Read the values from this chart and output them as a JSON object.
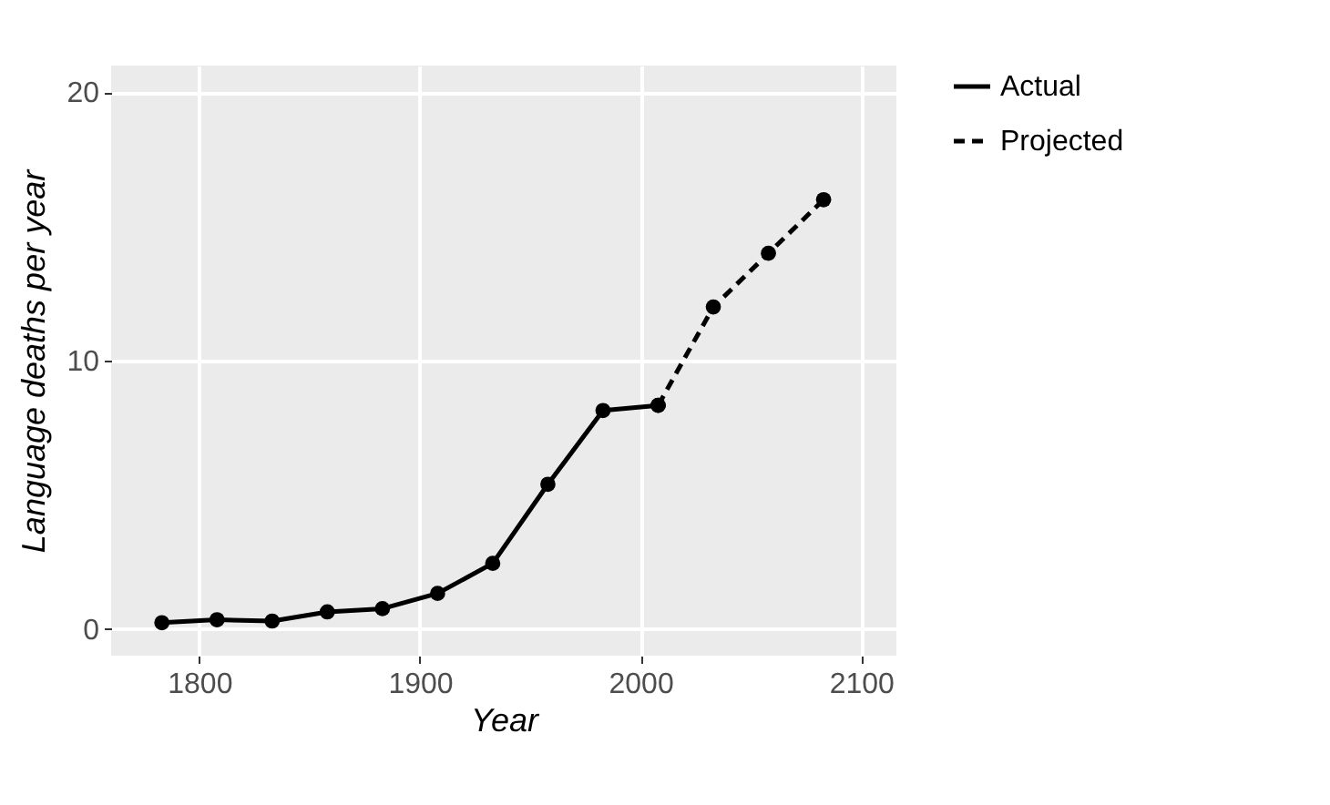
{
  "chart_data": {
    "type": "line",
    "xlabel": "Year",
    "ylabel": "Language deaths per year",
    "xlim": [
      1760,
      2116
    ],
    "xticks": [
      1800,
      1900,
      2000,
      2100
    ],
    "ylim": [
      -1,
      21
    ],
    "yticks": [
      0,
      10,
      20
    ],
    "grid": true,
    "legend": "right",
    "marker": "circle",
    "series": [
      {
        "name": "Actual",
        "color": "#000000",
        "line_style": "solid",
        "x": [
          1783,
          1808,
          1833,
          1858,
          1883,
          1908,
          1933,
          1958,
          1983,
          2008
        ],
        "values": [
          0.23,
          0.34,
          0.29,
          0.63,
          0.75,
          1.32,
          2.44,
          5.39,
          8.14,
          8.33
        ]
      },
      {
        "name": "Projected",
        "color": "#000000",
        "line_style": "dashed",
        "x": [
          2008,
          2033,
          2058,
          2083
        ],
        "values": [
          8.33,
          12,
          14,
          16
        ]
      }
    ]
  }
}
